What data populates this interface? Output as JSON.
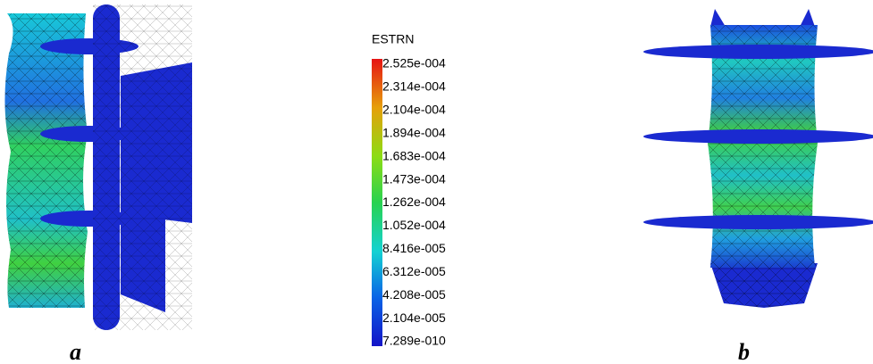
{
  "legend": {
    "title": "ESTRN",
    "labels": [
      "2.525e-004",
      "2.314e-004",
      "2.104e-004",
      "1.894e-004",
      "1.683e-004",
      "1.473e-004",
      "1.262e-004",
      "1.052e-004",
      "8.416e-005",
      "6.312e-005",
      "4.208e-005",
      "2.104e-005",
      "7.289e-010"
    ]
  },
  "panels": [
    {
      "label": "a"
    },
    {
      "label": "b"
    }
  ]
}
